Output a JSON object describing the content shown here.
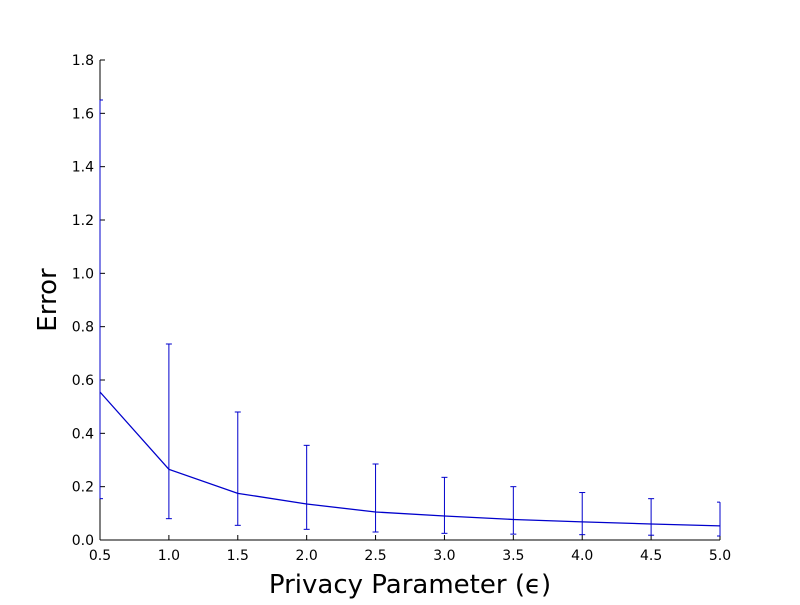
{
  "chart_data": {
    "type": "line",
    "xlabel": "Privacy Parameter (ϵ)",
    "ylabel": "Error",
    "xlim": [
      0.5,
      5.0
    ],
    "ylim": [
      0.0,
      1.8
    ],
    "xticks": [
      "0.5",
      "1.0",
      "1.5",
      "2.0",
      "2.5",
      "3.0",
      "3.5",
      "4.0",
      "4.5",
      "5.0"
    ],
    "yticks": [
      "0.0",
      "0.2",
      "0.4",
      "0.6",
      "0.8",
      "1.0",
      "1.2",
      "1.4",
      "1.6",
      "1.8"
    ],
    "grid": false,
    "series": [
      {
        "color": "#0000cc",
        "x": [
          0.5,
          1.0,
          1.5,
          2.0,
          2.5,
          3.0,
          3.5,
          4.0,
          4.5,
          5.0
        ],
        "y": [
          0.555,
          0.265,
          0.175,
          0.135,
          0.105,
          0.09,
          0.077,
          0.068,
          0.06,
          0.053
        ],
        "error_low": [
          0.155,
          0.08,
          0.055,
          0.04,
          0.03,
          0.025,
          0.022,
          0.02,
          0.018,
          0.015
        ],
        "error_high": [
          1.65,
          0.735,
          0.48,
          0.355,
          0.285,
          0.235,
          0.2,
          0.178,
          0.155,
          0.142
        ]
      }
    ]
  }
}
